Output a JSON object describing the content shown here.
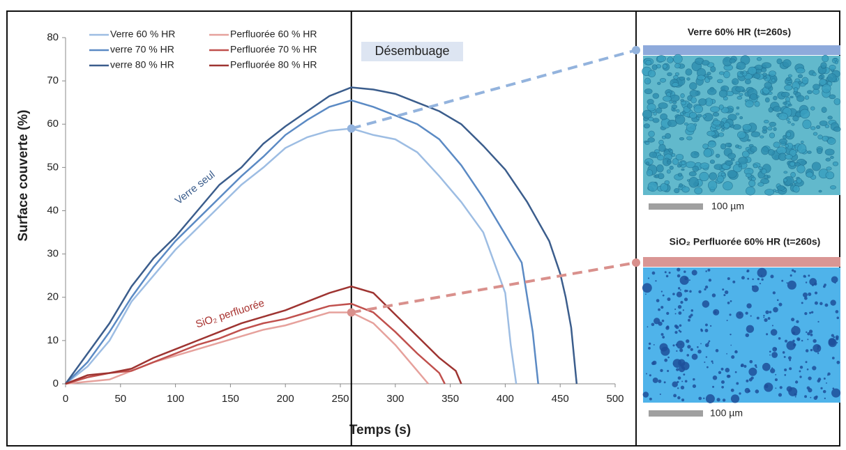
{
  "chart_data": {
    "type": "line",
    "x_label": "Temps (s)",
    "y_label": "Surface couverte (%)",
    "xlim": [
      0,
      500
    ],
    "ylim": [
      0,
      80
    ],
    "xticks": [
      0,
      50,
      100,
      150,
      200,
      250,
      300,
      350,
      400,
      450,
      500
    ],
    "yticks": [
      0,
      10,
      20,
      30,
      40,
      50,
      60,
      70,
      80
    ],
    "grid": false,
    "annotations": [
      "Désembuage",
      "Verre seul",
      "SiO₂ perfluorée"
    ],
    "series": [
      {
        "name": "Verre 60 % HR",
        "color": "#9dbde3",
        "x": [
          0,
          20,
          40,
          60,
          80,
          100,
          120,
          140,
          160,
          180,
          200,
          220,
          240,
          260,
          280,
          300,
          320,
          340,
          360,
          380,
          400,
          405,
          410
        ],
        "values": [
          0,
          4,
          10,
          19,
          25,
          31,
          36,
          41,
          46,
          50,
          54.5,
          57,
          58.5,
          59,
          57.5,
          56.5,
          53.5,
          48,
          42,
          35,
          21,
          9,
          0
        ]
      },
      {
        "name": "verre 70 % HR",
        "color": "#5b8ac4",
        "x": [
          0,
          20,
          40,
          60,
          80,
          100,
          120,
          140,
          160,
          180,
          200,
          220,
          240,
          260,
          280,
          300,
          320,
          340,
          360,
          380,
          400,
          415,
          420,
          425,
          430
        ],
        "values": [
          0,
          5,
          12,
          20,
          27,
          33,
          38,
          43,
          48,
          52.5,
          57.5,
          61,
          64,
          65.5,
          64,
          62,
          60,
          56.5,
          50.5,
          43,
          34.5,
          28,
          20,
          12,
          0
        ]
      },
      {
        "name": "verre 80 % HR",
        "color": "#3b5d8c",
        "x": [
          0,
          20,
          40,
          60,
          80,
          100,
          120,
          140,
          160,
          180,
          200,
          220,
          240,
          260,
          280,
          300,
          320,
          340,
          360,
          380,
          400,
          420,
          440,
          450,
          455,
          460,
          465
        ],
        "values": [
          0,
          7,
          14,
          22.5,
          29,
          34,
          40,
          46,
          50,
          55.5,
          59.5,
          63,
          66.5,
          68.5,
          68,
          67,
          65,
          63,
          60,
          55,
          49.5,
          42,
          33,
          25.5,
          20,
          13,
          0
        ]
      },
      {
        "name": "Perfluorée 60 % HR",
        "color": "#e6a19c",
        "x": [
          0,
          20,
          40,
          60,
          80,
          100,
          120,
          140,
          160,
          180,
          200,
          220,
          240,
          260,
          280,
          300,
          320,
          330
        ],
        "values": [
          0,
          0.5,
          1,
          3,
          5,
          6.5,
          8,
          9.5,
          11,
          12.5,
          13.5,
          15,
          16.5,
          16.5,
          14,
          9,
          3,
          0
        ]
      },
      {
        "name": "Perfluorée 70 % HR",
        "color": "#c0504d",
        "x": [
          0,
          20,
          40,
          60,
          80,
          100,
          120,
          140,
          160,
          180,
          200,
          220,
          240,
          260,
          280,
          300,
          320,
          340,
          345
        ],
        "values": [
          0,
          1.5,
          2.5,
          3,
          5,
          7,
          9,
          10.5,
          12.5,
          14,
          15,
          16.5,
          18,
          18.5,
          16.5,
          12,
          7,
          2.5,
          0
        ]
      },
      {
        "name": "Perfluorée 80 % HR",
        "color": "#9e3431",
        "x": [
          0,
          20,
          40,
          60,
          80,
          100,
          120,
          140,
          160,
          180,
          200,
          220,
          240,
          260,
          280,
          300,
          320,
          340,
          355,
          360
        ],
        "values": [
          0,
          2,
          2.5,
          3.5,
          6,
          8,
          10,
          12,
          14,
          15.5,
          17,
          19,
          21,
          22.5,
          21,
          16,
          11,
          6,
          3,
          0
        ]
      }
    ]
  },
  "panels": [
    {
      "title": "Verre 60% HR (t=260s)",
      "scale": "100 µm"
    },
    {
      "title": "SiO₂ Perfluorée 60% HR (t=260s)",
      "scale": "100 µm"
    }
  ]
}
